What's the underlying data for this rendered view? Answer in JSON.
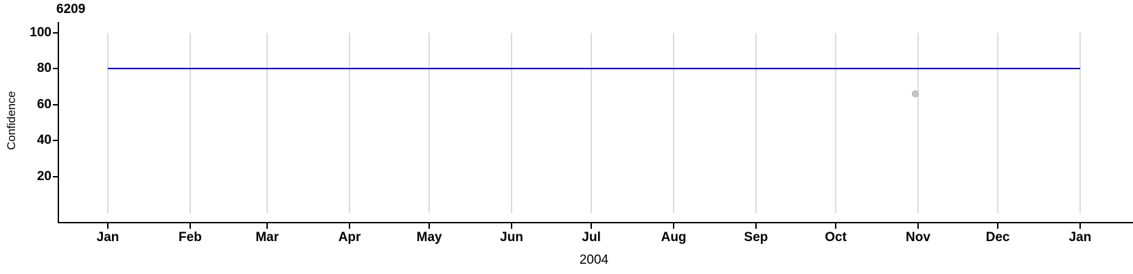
{
  "chart_data": {
    "type": "line",
    "title": "6209",
    "xlabel": "2004",
    "ylabel": "Confidence",
    "x_tick_labels": [
      "Jan",
      "Feb",
      "Mar",
      "Apr",
      "May",
      "Jun",
      "Jul",
      "Aug",
      "Sep",
      "Oct",
      "Nov",
      "Dec",
      "Jan"
    ],
    "y_ticks": [
      100,
      80,
      60,
      40,
      20
    ],
    "ylim": [
      0,
      100
    ],
    "xlim": [
      "2004-01-01",
      "2005-01-01"
    ],
    "grid": "vertical-monthly-gridlines",
    "legend": "none",
    "series": [
      {
        "name": "confidence-reference-line",
        "type": "hline",
        "y": 80,
        "x_start": "2004-01-01",
        "x_end": "2005-01-01",
        "color": "#0000CC"
      },
      {
        "name": "observation-point",
        "type": "scatter",
        "x": "2004-10-31",
        "y": 66,
        "color": "#C5C5C5"
      }
    ],
    "colors": {
      "background": "#FFFFFF",
      "axis": "#000000",
      "text": "#000000",
      "grid": "#DBDBDB",
      "line": "#0000CC",
      "point_fill": "#C5C5C5",
      "point_stroke": "#A9A9A9"
    }
  }
}
